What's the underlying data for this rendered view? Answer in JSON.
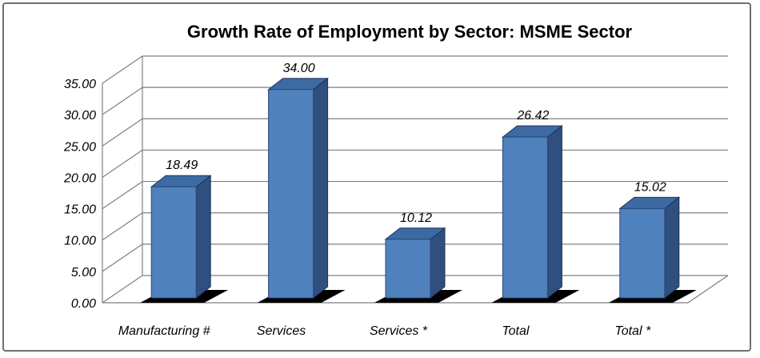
{
  "chart_data": {
    "type": "bar",
    "title": "Growth Rate of Employment by Sector: MSME Sector",
    "categories": [
      "Manufacturing #",
      "Services",
      "Services *",
      "Total",
      "Total *"
    ],
    "values": [
      18.49,
      34.0,
      10.12,
      26.42,
      15.02
    ],
    "value_labels": [
      "18.49",
      "34.00",
      "10.12",
      "26.42",
      "15.02"
    ],
    "y_ticks": [
      "0.00",
      "5.00",
      "10.00",
      "15.00",
      "20.00",
      "25.00",
      "30.00",
      "35.00"
    ],
    "ylim": [
      0,
      35
    ],
    "xlabel": "",
    "ylabel": "",
    "grid": true,
    "legend": "none",
    "colors": {
      "bar_front": "#4f81bd",
      "bar_side": "#2f4f7f",
      "bar_top": "#3d6aa3",
      "shadow": "#000000",
      "grid": "#7f7f7f"
    }
  }
}
